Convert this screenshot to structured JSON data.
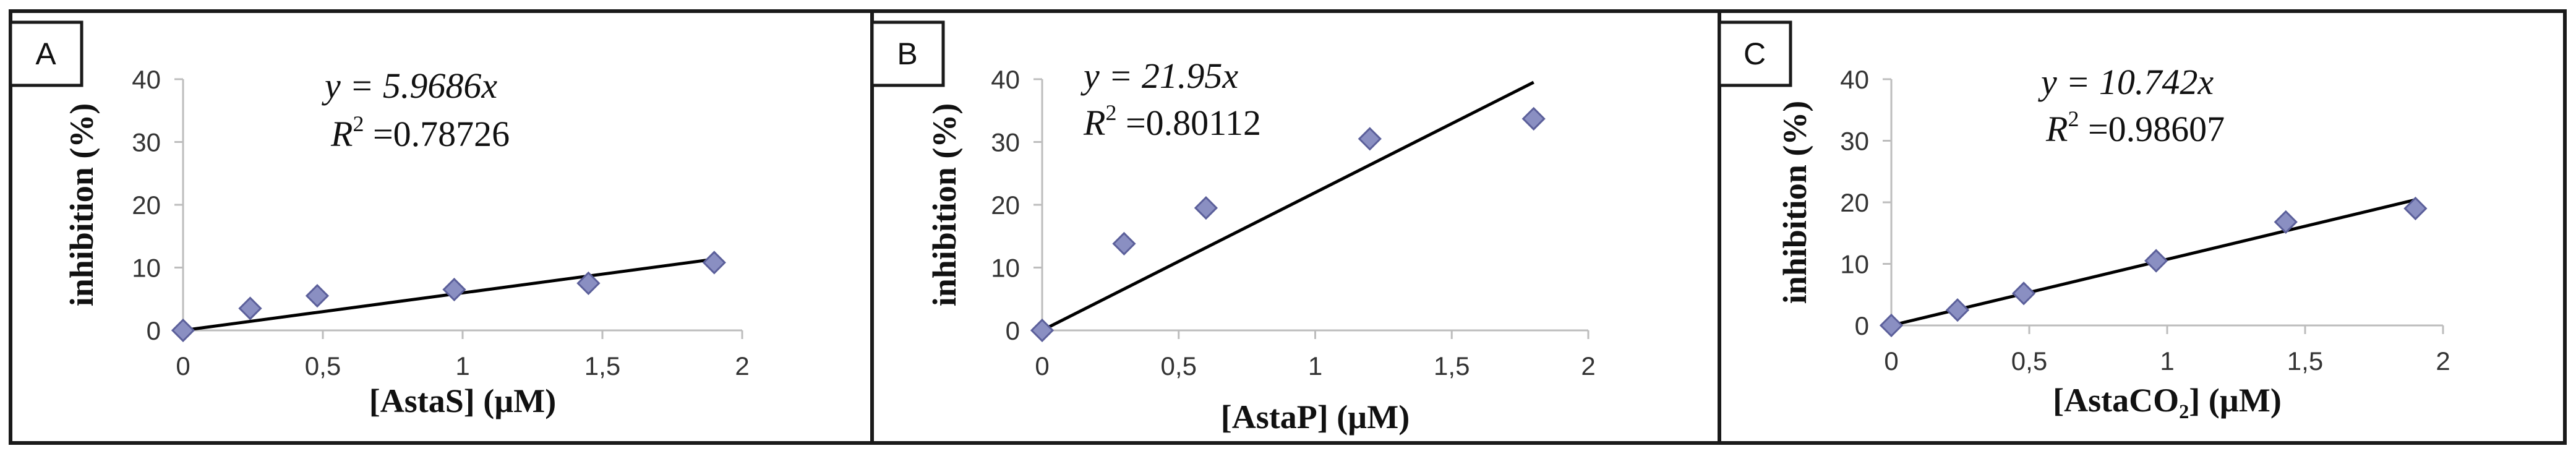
{
  "panels": [
    {
      "letter": "A",
      "equation": "y = 5.9686x",
      "r2_label": "R",
      "r2_sup": "2",
      "r2_value": " =0.78726"
    },
    {
      "letter": "B",
      "equation": "y = 21.95x",
      "r2_label": "R",
      "r2_sup": "2",
      "r2_value": " =0.80112"
    },
    {
      "letter": "C",
      "equation": "y = 10.742x",
      "r2_label": "R",
      "r2_sup": "2",
      "r2_value": " =0.98607"
    }
  ],
  "chart_data": [
    {
      "type": "scatter",
      "xlabel": "[AstaS] (µM)",
      "ylabel": "inhibition (%)",
      "xlim": [
        0,
        2
      ],
      "ylim": [
        0,
        40
      ],
      "xticks": [
        "0",
        "0,5",
        "1",
        "1,5",
        "2"
      ],
      "yticks": [
        "0",
        "10",
        "20",
        "30",
        "40"
      ],
      "points": [
        [
          0,
          0
        ],
        [
          0.24,
          3.5
        ],
        [
          0.48,
          5.5
        ],
        [
          0.97,
          6.5
        ],
        [
          1.45,
          7.5
        ],
        [
          1.9,
          10.8
        ]
      ],
      "trendline": {
        "slope": 5.9686,
        "r2": 0.78726
      },
      "marker_color": "#8a8fc2"
    },
    {
      "type": "scatter",
      "xlabel": "[AstaP] (µM)",
      "ylabel": "inhibition (%)",
      "xlim": [
        0,
        2
      ],
      "ylim": [
        0,
        40
      ],
      "xticks": [
        "0",
        "0,5",
        "1",
        "1,5",
        "2"
      ],
      "yticks": [
        "0",
        "10",
        "20",
        "30",
        "40"
      ],
      "points": [
        [
          0,
          0
        ],
        [
          0.3,
          13.8
        ],
        [
          0.6,
          19.5
        ],
        [
          1.2,
          30.5
        ],
        [
          1.8,
          33.7
        ]
      ],
      "trendline": {
        "slope": 21.95,
        "r2": 0.80112
      },
      "marker_color": "#8a8fc2"
    },
    {
      "type": "scatter",
      "xlabel": "[AstaCO₂] (µM)",
      "ylabel": "inhibition (%)",
      "xlim": [
        0,
        2
      ],
      "ylim": [
        0,
        40
      ],
      "xticks": [
        "0",
        "0,5",
        "1",
        "1,5",
        "2"
      ],
      "yticks": [
        "0",
        "10",
        "20",
        "30",
        "40"
      ],
      "points": [
        [
          0,
          0
        ],
        [
          0.24,
          2.5
        ],
        [
          0.48,
          5.2
        ],
        [
          0.96,
          10.5
        ],
        [
          1.43,
          16.8
        ],
        [
          1.9,
          19.0
        ]
      ],
      "trendline": {
        "slope": 10.742,
        "r2": 0.98607
      },
      "marker_color": "#8a8fc2"
    }
  ]
}
